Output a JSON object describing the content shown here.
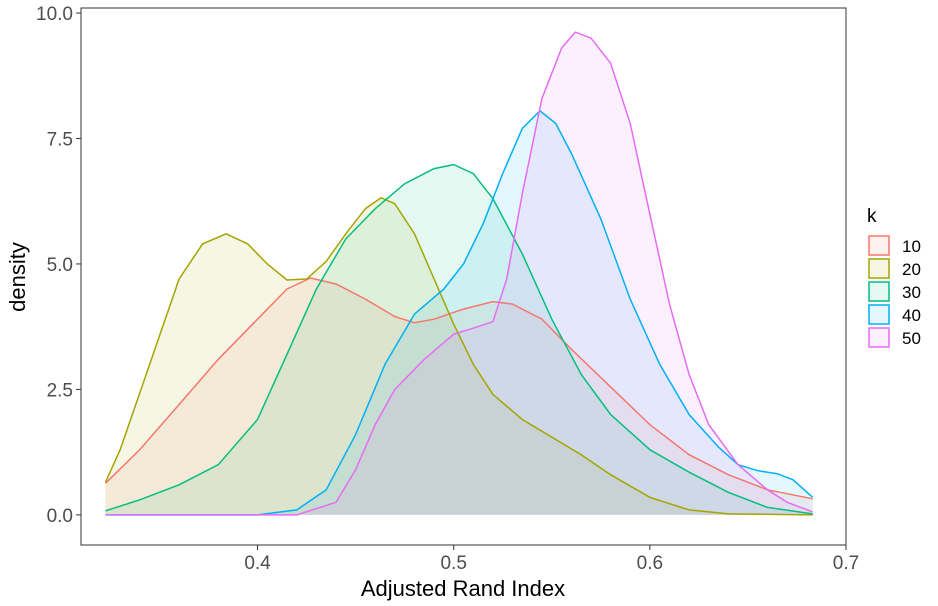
{
  "chart_data": {
    "type": "area",
    "xlabel": "Adjusted Rand Index",
    "ylabel": "density",
    "xlim": [
      0.31,
      0.7
    ],
    "ylim": [
      -0.6,
      10.1
    ],
    "x_ticks": [
      0.4,
      0.5,
      0.6,
      0.7
    ],
    "x_tick_labels": [
      "0.4",
      "0.5",
      "0.6",
      "0.7"
    ],
    "y_ticks": [
      0,
      2.5,
      5,
      7.5,
      10
    ],
    "y_tick_labels": [
      "0.0",
      "2.5",
      "5.0",
      "7.5",
      "10.0"
    ],
    "grid": false,
    "legend": {
      "title": "k",
      "position": "right"
    },
    "fill_opacity": 0.1,
    "series": [
      {
        "name": "10",
        "color": "#F8766D",
        "points": [
          [
            0.3225,
            0.63
          ],
          [
            0.34,
            1.3
          ],
          [
            0.36,
            2.2
          ],
          [
            0.38,
            3.1
          ],
          [
            0.4,
            3.9
          ],
          [
            0.415,
            4.5
          ],
          [
            0.427,
            4.72
          ],
          [
            0.44,
            4.6
          ],
          [
            0.455,
            4.3
          ],
          [
            0.47,
            3.95
          ],
          [
            0.48,
            3.83
          ],
          [
            0.49,
            3.9
          ],
          [
            0.505,
            4.1
          ],
          [
            0.52,
            4.25
          ],
          [
            0.53,
            4.2
          ],
          [
            0.545,
            3.9
          ],
          [
            0.56,
            3.3
          ],
          [
            0.58,
            2.55
          ],
          [
            0.6,
            1.8
          ],
          [
            0.62,
            1.2
          ],
          [
            0.64,
            0.8
          ],
          [
            0.66,
            0.5
          ],
          [
            0.683,
            0.32
          ]
        ]
      },
      {
        "name": "20",
        "color": "#A3A500",
        "points": [
          [
            0.3225,
            0.65
          ],
          [
            0.33,
            1.3
          ],
          [
            0.345,
            3.0
          ],
          [
            0.36,
            4.7
          ],
          [
            0.372,
            5.4
          ],
          [
            0.384,
            5.6
          ],
          [
            0.395,
            5.4
          ],
          [
            0.405,
            5.0
          ],
          [
            0.415,
            4.68
          ],
          [
            0.425,
            4.7
          ],
          [
            0.435,
            5.05
          ],
          [
            0.445,
            5.6
          ],
          [
            0.455,
            6.1
          ],
          [
            0.463,
            6.32
          ],
          [
            0.47,
            6.2
          ],
          [
            0.48,
            5.6
          ],
          [
            0.49,
            4.7
          ],
          [
            0.5,
            3.8
          ],
          [
            0.51,
            3.0
          ],
          [
            0.52,
            2.4
          ],
          [
            0.535,
            1.9
          ],
          [
            0.55,
            1.55
          ],
          [
            0.565,
            1.2
          ],
          [
            0.58,
            0.8
          ],
          [
            0.6,
            0.35
          ],
          [
            0.62,
            0.1
          ],
          [
            0.64,
            0.02
          ],
          [
            0.683,
            0.0
          ]
        ]
      },
      {
        "name": "30",
        "color": "#00BF7D",
        "points": [
          [
            0.3225,
            0.08
          ],
          [
            0.34,
            0.3
          ],
          [
            0.36,
            0.6
          ],
          [
            0.38,
            1.0
          ],
          [
            0.4,
            1.9
          ],
          [
            0.415,
            3.2
          ],
          [
            0.43,
            4.5
          ],
          [
            0.445,
            5.5
          ],
          [
            0.46,
            6.1
          ],
          [
            0.475,
            6.6
          ],
          [
            0.49,
            6.9
          ],
          [
            0.5,
            6.98
          ],
          [
            0.51,
            6.8
          ],
          [
            0.52,
            6.3
          ],
          [
            0.535,
            5.2
          ],
          [
            0.55,
            3.9
          ],
          [
            0.565,
            2.8
          ],
          [
            0.58,
            2.0
          ],
          [
            0.6,
            1.3
          ],
          [
            0.62,
            0.85
          ],
          [
            0.64,
            0.45
          ],
          [
            0.66,
            0.15
          ],
          [
            0.683,
            0.02
          ]
        ]
      },
      {
        "name": "40",
        "color": "#00B0F6",
        "points": [
          [
            0.3225,
            0.0
          ],
          [
            0.4,
            0.0
          ],
          [
            0.42,
            0.1
          ],
          [
            0.435,
            0.5
          ],
          [
            0.45,
            1.6
          ],
          [
            0.465,
            3.0
          ],
          [
            0.48,
            4.0
          ],
          [
            0.495,
            4.5
          ],
          [
            0.505,
            5.0
          ],
          [
            0.515,
            5.8
          ],
          [
            0.525,
            6.8
          ],
          [
            0.535,
            7.7
          ],
          [
            0.544,
            8.05
          ],
          [
            0.552,
            7.8
          ],
          [
            0.56,
            7.2
          ],
          [
            0.575,
            5.9
          ],
          [
            0.59,
            4.3
          ],
          [
            0.605,
            3.0
          ],
          [
            0.62,
            2.0
          ],
          [
            0.635,
            1.35
          ],
          [
            0.645,
            1.0
          ],
          [
            0.655,
            0.88
          ],
          [
            0.665,
            0.82
          ],
          [
            0.673,
            0.7
          ],
          [
            0.683,
            0.35
          ]
        ]
      },
      {
        "name": "50",
        "color": "#E76BF3",
        "points": [
          [
            0.3225,
            0.0
          ],
          [
            0.42,
            0.0
          ],
          [
            0.44,
            0.25
          ],
          [
            0.45,
            0.9
          ],
          [
            0.46,
            1.8
          ],
          [
            0.47,
            2.5
          ],
          [
            0.485,
            3.1
          ],
          [
            0.5,
            3.6
          ],
          [
            0.51,
            3.72
          ],
          [
            0.52,
            3.85
          ],
          [
            0.527,
            4.7
          ],
          [
            0.535,
            6.4
          ],
          [
            0.545,
            8.3
          ],
          [
            0.555,
            9.3
          ],
          [
            0.562,
            9.62
          ],
          [
            0.57,
            9.5
          ],
          [
            0.58,
            9.0
          ],
          [
            0.59,
            7.8
          ],
          [
            0.6,
            6.0
          ],
          [
            0.61,
            4.2
          ],
          [
            0.62,
            2.8
          ],
          [
            0.63,
            1.8
          ],
          [
            0.645,
            1.0
          ],
          [
            0.66,
            0.5
          ],
          [
            0.67,
            0.25
          ],
          [
            0.683,
            0.06
          ]
        ]
      }
    ]
  }
}
